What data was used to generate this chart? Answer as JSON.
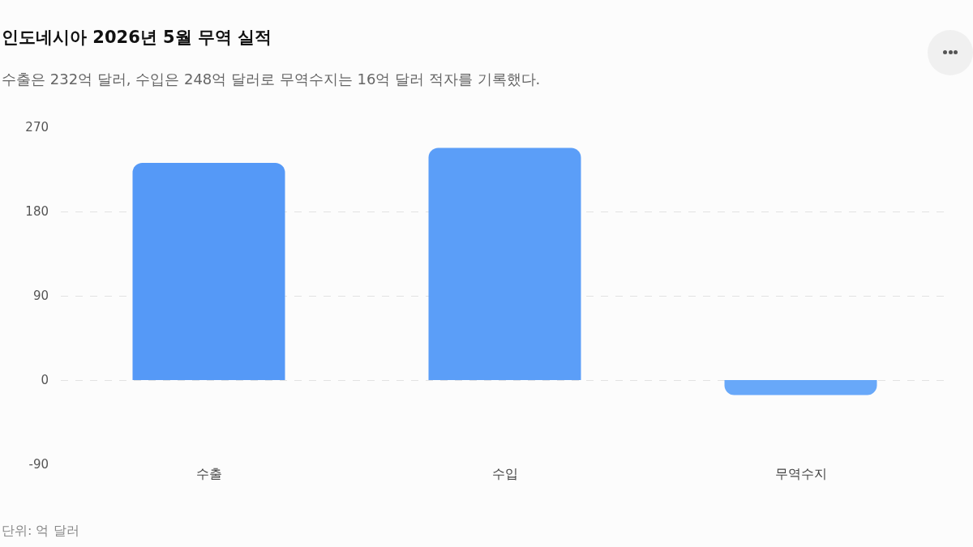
{
  "chart_data": {
    "type": "bar",
    "title": "인도네시아 2026년 5월 무역 실적",
    "subtitle": "수출은 232억 달러, 수입은 248억 달러로 무역수지는 16억 달러 적자를 기록했다.",
    "categories": [
      "수출",
      "수입",
      "무역수지"
    ],
    "values": [
      232,
      248,
      -16
    ],
    "colors": [
      "#5599f7",
      "#5b9ef8",
      "#68a8f9"
    ],
    "ylim": [
      -90,
      270
    ],
    "yticks": [
      -90,
      0,
      90,
      180,
      270
    ],
    "grid": "y",
    "annotations": [
      "단위: 억 달러"
    ]
  }
}
